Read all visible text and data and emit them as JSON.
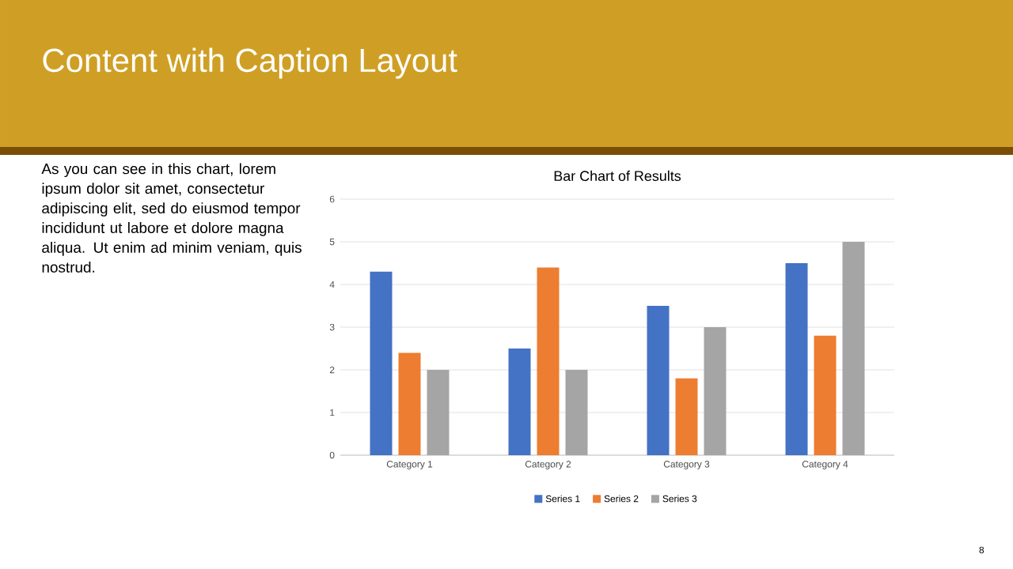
{
  "chart_data": {
    "type": "bar",
    "title": "Bar Chart of Results",
    "categories": [
      "Category 1",
      "Category 2",
      "Category 3",
      "Category 4"
    ],
    "series": [
      {
        "name": "Series 1",
        "color": "#4472c4",
        "values": [
          4.3,
          2.5,
          3.5,
          4.5
        ]
      },
      {
        "name": "Series 2",
        "color": "#ed7d31",
        "values": [
          2.4,
          4.4,
          1.8,
          2.8
        ]
      },
      {
        "name": "Series 3",
        "color": "#a5a5a5",
        "values": [
          2,
          2,
          3,
          5
        ]
      }
    ],
    "ylim": [
      0,
      6
    ],
    "yticks": [
      0,
      1,
      2,
      3,
      4,
      5,
      6
    ],
    "grid": "y",
    "legend": "bottom",
    "annotations": [
      "Content with Caption Layout",
      "As you can see in this chart, lorem ipsum dolor sit amet, consectetur adipiscing elit, sed do eiusmod tempor incididunt ut labore et dolore magna aliqua. Ut enim ad minim veniam, quis nostrud.",
      "8"
    ]
  }
}
